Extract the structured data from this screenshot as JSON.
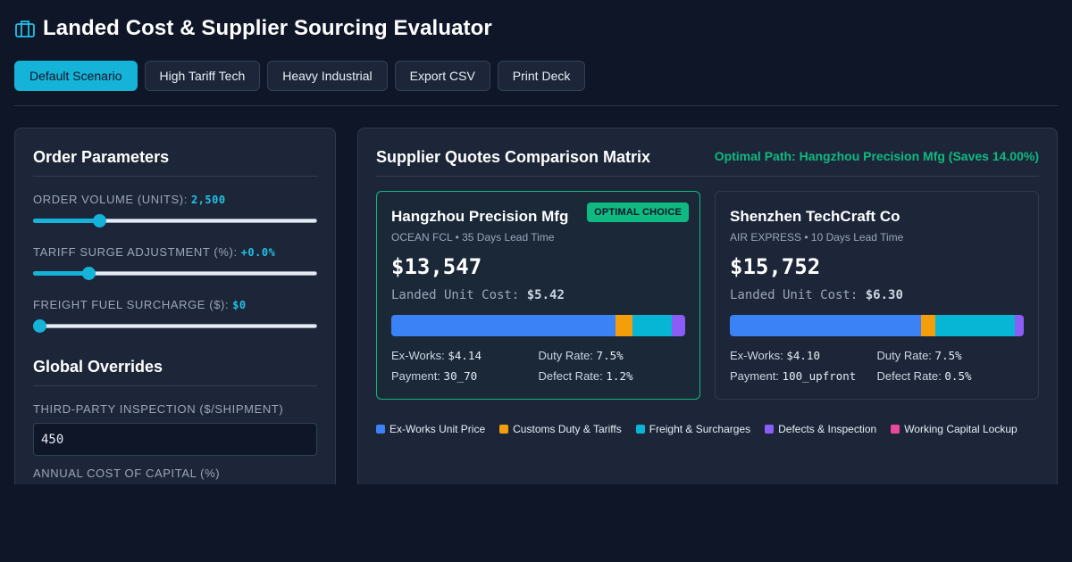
{
  "header": {
    "title": "Landed Cost & Supplier Sourcing Evaluator",
    "icon": "briefcase-icon"
  },
  "scenarios": [
    {
      "label": "Default Scenario",
      "active": true
    },
    {
      "label": "High Tariff Tech",
      "active": false
    },
    {
      "label": "Heavy Industrial",
      "active": false
    },
    {
      "label": "Export CSV",
      "active": false
    },
    {
      "label": "Print Deck",
      "active": false
    }
  ],
  "order_params": {
    "title": "Order Parameters",
    "volume": {
      "label": "ORDER VOLUME (UNITS):",
      "value": "2,500",
      "level": 0.22
    },
    "tariff": {
      "label": "TARIFF SURGE ADJUSTMENT (%):",
      "value": "+0.0%",
      "level": 0.18
    },
    "fuel": {
      "label": "FREIGHT FUEL SURCHARGE ($):",
      "value": "$0",
      "level": 0.0
    }
  },
  "overrides": {
    "title": "Global Overrides",
    "inspection": {
      "label": "THIRD-PARTY INSPECTION ($/SHIPMENT)",
      "value": "450"
    },
    "capital": {
      "label": "ANNUAL COST OF CAPITAL (%)"
    }
  },
  "matrix": {
    "title": "Supplier Quotes Comparison Matrix",
    "optimal_text": "Optimal Path: Hangzhou Precision Mfg (Saves 14.00%)",
    "badge": "OPTIMAL CHOICE",
    "unit_label": "Landed Unit Cost:",
    "labels": {
      "exworks": "Ex-Works:",
      "duty": "Duty Rate:",
      "payment": "Payment:",
      "defect": "Defect Rate:"
    },
    "suppliers": [
      {
        "name": "Hangzhou Precision Mfg",
        "sub": "OCEAN FCL • 35 Days Lead Time",
        "total": "$13,547",
        "unit_cost": "$5.42",
        "exworks": "$4.14",
        "duty": "7.5%",
        "payment": "30_70",
        "defect": "1.2%",
        "breakdown": [
          0.763,
          0.057,
          0.135,
          0.045,
          0.0
        ]
      },
      {
        "name": "Shenzhen TechCraft Co",
        "sub": "AIR EXPRESS • 10 Days Lead Time",
        "total": "$15,752",
        "unit_cost": "$6.30",
        "exworks": "$4.10",
        "duty": "7.5%",
        "payment": "100_upfront",
        "defect": "0.5%",
        "breakdown": [
          0.651,
          0.048,
          0.27,
          0.031,
          0.0
        ]
      }
    ]
  },
  "legend": [
    {
      "label": "Ex-Works Unit Price",
      "color": "#3b82f6"
    },
    {
      "label": "Customs Duty & Tariffs",
      "color": "#f59e0b"
    },
    {
      "label": "Freight & Surcharges",
      "color": "#06b6d4"
    },
    {
      "label": "Defects & Inspection",
      "color": "#8b5cf6"
    },
    {
      "label": "Working Capital Lockup",
      "color": "#ec4899"
    }
  ]
}
